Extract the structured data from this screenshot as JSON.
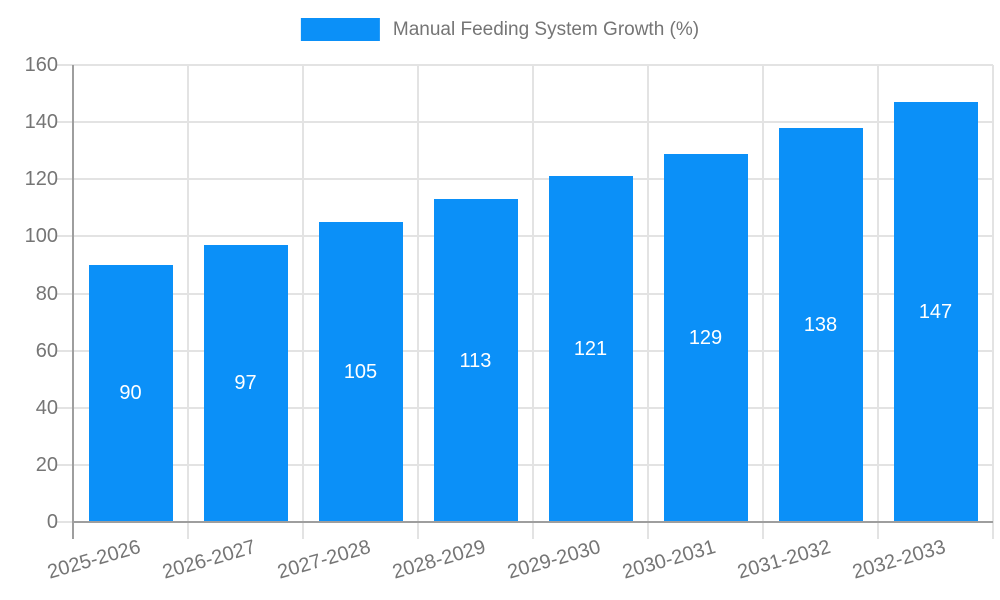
{
  "chart_data": {
    "type": "bar",
    "title": "Manual Feeding System Growth (%)",
    "legend": {
      "position": "top",
      "entries": [
        {
          "label": "Manual Feeding System Growth (%)",
          "color": "#0b90f8"
        }
      ]
    },
    "categories": [
      "2025-2026",
      "2026-2027",
      "2027-2028",
      "2028-2029",
      "2029-2030",
      "2030-2031",
      "2031-2032",
      "2032-2033"
    ],
    "series": [
      {
        "name": "Manual Feeding System Growth (%)",
        "values": [
          90,
          97,
          105,
          113,
          121,
          129,
          138,
          147
        ]
      }
    ],
    "value_labels": {
      "show": true,
      "position": "inside-center",
      "color": "#ffffff"
    },
    "xlabel": "",
    "ylabel": "",
    "ylim": [
      0,
      160
    ],
    "yticks": [
      0,
      20,
      40,
      60,
      80,
      100,
      120,
      140,
      160
    ],
    "grid": {
      "horizontal": true,
      "vertical": true
    },
    "x_tick_rotation_deg": -16,
    "colors": {
      "bar": "#0b90f8",
      "grid": "#e3e3e3",
      "axis": "#9e9e9e",
      "text": "#757575",
      "value_label": "#ffffff"
    }
  }
}
